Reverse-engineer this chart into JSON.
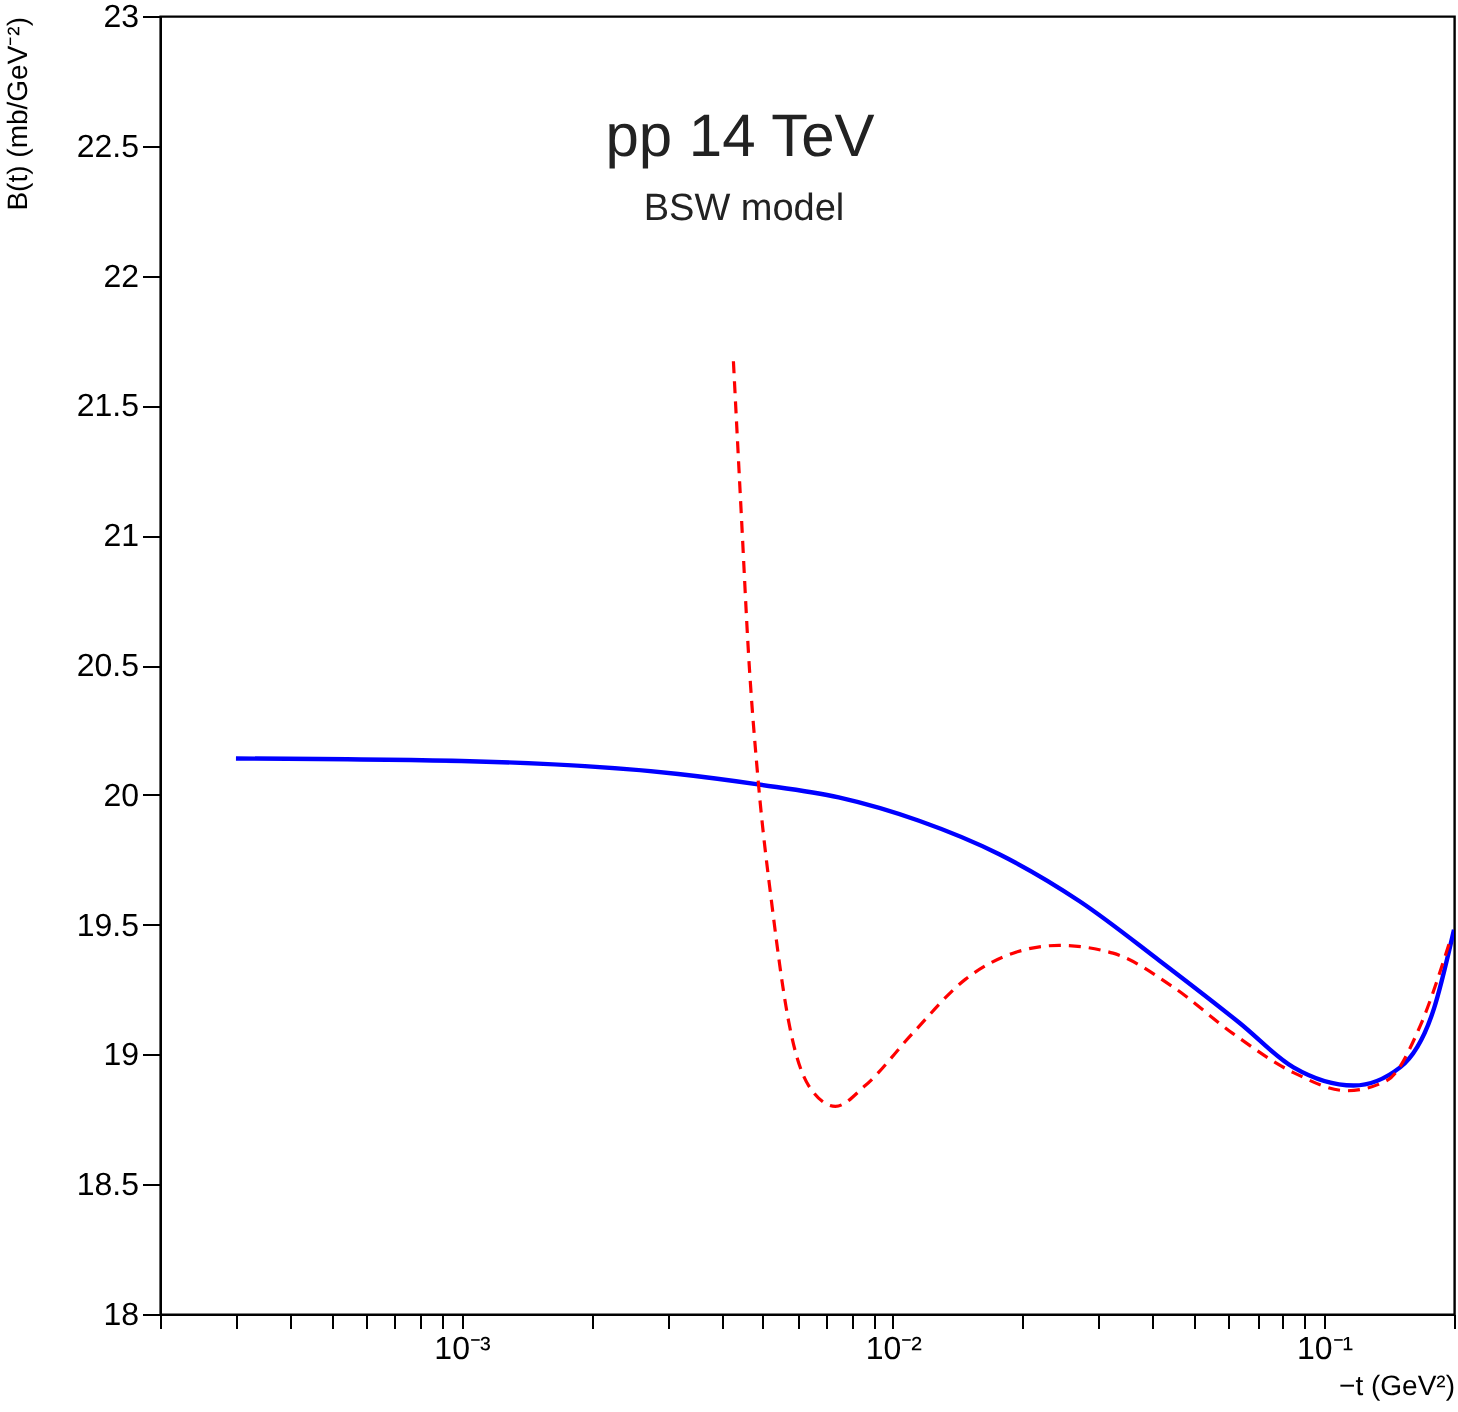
{
  "chart_data": {
    "type": "line",
    "title": "pp 14 TeV",
    "subtitle": "BSW model",
    "xlabel": "−t  (GeV²)",
    "ylabel": "B(t) (mb/GeV⁻²)",
    "log": "x",
    "xlim": [
      0.0002,
      0.2
    ],
    "ylim": [
      18,
      23
    ],
    "xticks": [
      {
        "value": 0.0002,
        "label": null
      },
      {
        "value": 0.0003,
        "label": null
      },
      {
        "value": 0.0004,
        "label": null
      },
      {
        "value": 0.0005,
        "label": null
      },
      {
        "value": 0.0006,
        "label": null
      },
      {
        "value": 0.0007,
        "label": null
      },
      {
        "value": 0.0008,
        "label": null
      },
      {
        "value": 0.0009,
        "label": null
      },
      {
        "value": 0.001,
        "label": "10⁻³"
      },
      {
        "value": 0.002,
        "label": null
      },
      {
        "value": 0.003,
        "label": null
      },
      {
        "value": 0.004,
        "label": null
      },
      {
        "value": 0.005,
        "label": null
      },
      {
        "value": 0.006,
        "label": null
      },
      {
        "value": 0.007,
        "label": null
      },
      {
        "value": 0.008,
        "label": null
      },
      {
        "value": 0.009,
        "label": null
      },
      {
        "value": 0.01,
        "label": "10⁻²"
      },
      {
        "value": 0.02,
        "label": null
      },
      {
        "value": 0.03,
        "label": null
      },
      {
        "value": 0.04,
        "label": null
      },
      {
        "value": 0.05,
        "label": null
      },
      {
        "value": 0.06,
        "label": null
      },
      {
        "value": 0.07,
        "label": null
      },
      {
        "value": 0.08,
        "label": null
      },
      {
        "value": 0.09,
        "label": null
      },
      {
        "value": 0.1,
        "label": "10⁻¹"
      },
      {
        "value": 0.2,
        "label": null
      }
    ],
    "yticks": [
      18,
      18.5,
      19,
      19.5,
      20,
      20.5,
      21,
      21.5,
      22,
      22.5,
      23
    ],
    "grid": false,
    "series": [
      {
        "color": "#0000ff",
        "line_style": "solid",
        "x": [
          0.0003,
          0.001,
          0.00318,
          0.00487,
          0.00749,
          0.0115,
          0.0177,
          0.0271,
          0.0416,
          0.0638,
          0.0849,
          0.117,
          0.15,
          0.18,
          0.2
        ],
        "values": [
          20.14,
          20.13,
          20.08,
          20.04,
          19.99,
          19.9,
          19.77,
          19.59,
          19.36,
          19.12,
          18.95,
          18.88,
          18.95,
          19.18,
          19.48
        ]
      },
      {
        "color": "#ff0000",
        "line_style": "dashed",
        "x": [
          0.00427,
          0.00446,
          0.00463,
          0.00487,
          0.00525,
          0.00573,
          0.00638,
          0.00736,
          0.00863,
          0.0111,
          0.01475,
          0.019,
          0.0243,
          0.0324,
          0.0446,
          0.0615,
          0.0849,
          0.113,
          0.14,
          0.167,
          0.196
        ],
        "values": [
          21.67,
          21.06,
          20.54,
          20.06,
          19.57,
          19.13,
          18.88,
          18.8,
          18.88,
          19.08,
          19.29,
          19.39,
          19.42,
          19.39,
          19.26,
          19.08,
          18.93,
          18.86,
          18.9,
          19.11,
          19.44
        ]
      }
    ]
  }
}
